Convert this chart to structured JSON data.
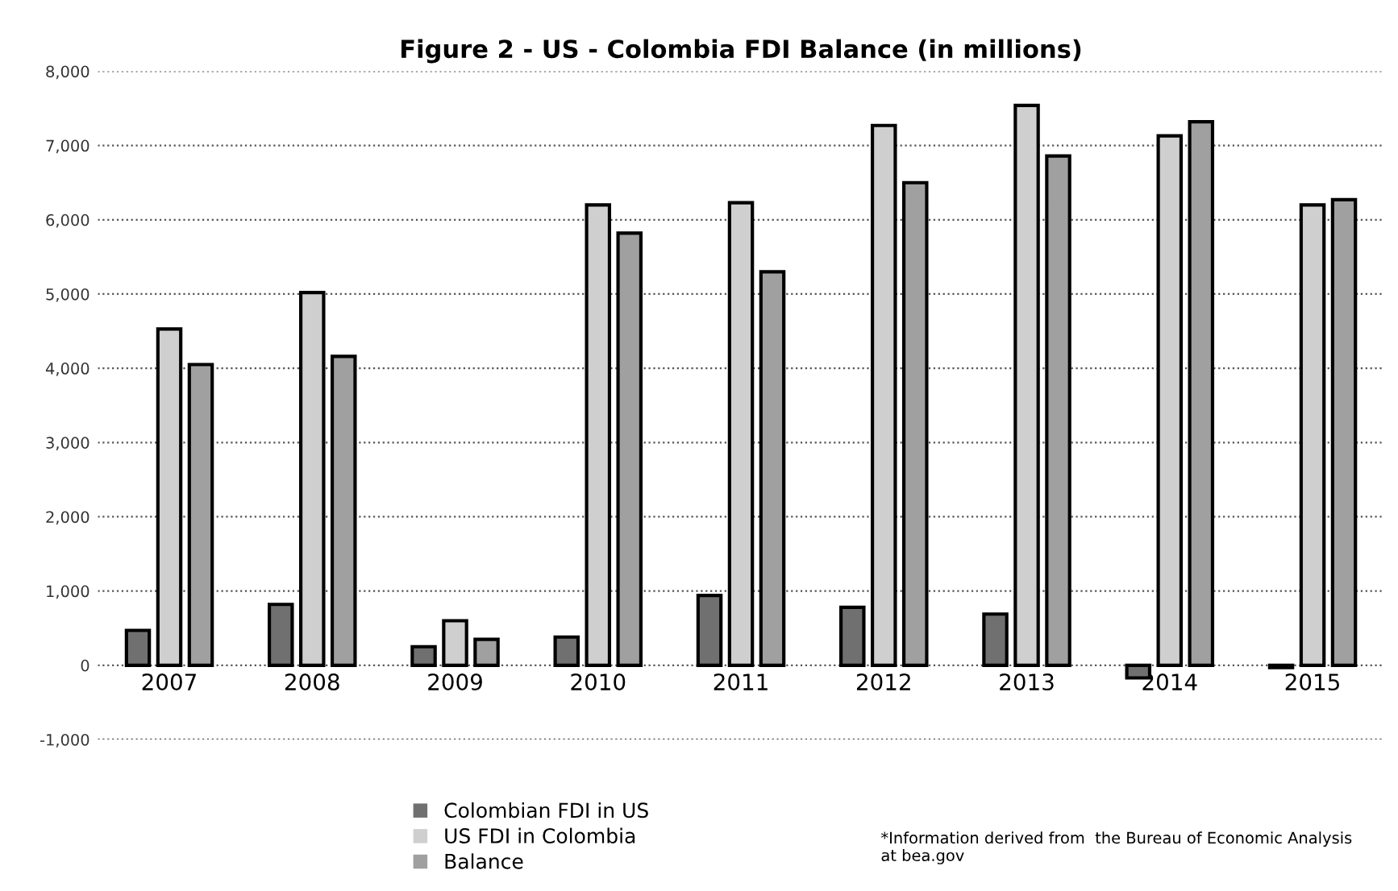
{
  "chart_data": {
    "type": "bar",
    "title": "Figure 2 - US - Colombia FDI Balance (in millions)",
    "categories": [
      "2007",
      "2008",
      "2009",
      "2010",
      "2011",
      "2012",
      "2013",
      "2014",
      "2015"
    ],
    "series": [
      {
        "name": "Colombian FDI in US",
        "color": "#707070",
        "values": [
          470,
          820,
          250,
          380,
          940,
          780,
          690,
          -170,
          -30
        ]
      },
      {
        "name": "US FDI in Colombia",
        "color": "#cfcfcf",
        "values": [
          4530,
          5020,
          600,
          6200,
          6230,
          7270,
          7540,
          7130,
          6200
        ]
      },
      {
        "name": "Balance",
        "color": "#a0a0a0",
        "values": [
          4050,
          4160,
          350,
          5820,
          5300,
          6500,
          6860,
          7320,
          6270
        ]
      }
    ],
    "ylim": [
      -1000,
      8000
    ],
    "yticks": [
      {
        "value": -1000,
        "label": "-1,000"
      },
      0,
      {
        "value": 1000,
        "label": "1,000"
      },
      {
        "value": 2000,
        "label": "2,000"
      },
      {
        "value": 3000,
        "label": "3,000"
      },
      {
        "value": 4000,
        "label": "4,000"
      },
      {
        "value": 5000,
        "label": "5,000"
      },
      {
        "value": 6000,
        "label": "6,000"
      },
      {
        "value": 7000,
        "label": "7,000"
      },
      {
        "value": 8000,
        "label": "8,000"
      }
    ],
    "grid": "y",
    "legend": "bottom",
    "annotations": [
      "*Information derived from  the Bureau of Economic Analysis\nat bea.gov"
    ]
  }
}
